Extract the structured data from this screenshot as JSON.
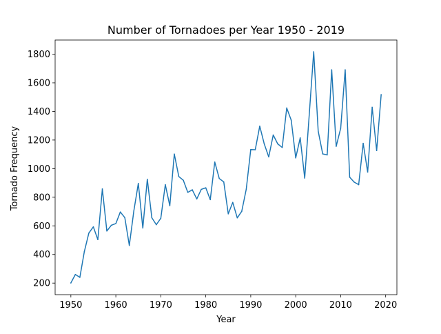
{
  "chart_data": {
    "type": "line",
    "title": "Number of Tornadoes per Year 1950 - 2019",
    "xlabel": "Year",
    "ylabel": "Tornado Frequency",
    "xlim": [
      1946.5,
      2022.5
    ],
    "ylim": [
      119,
      1899
    ],
    "xticks": [
      1950,
      1960,
      1970,
      1980,
      1990,
      2000,
      2010,
      2020
    ],
    "yticks": [
      200,
      400,
      600,
      800,
      1000,
      1200,
      1400,
      1600,
      1800
    ],
    "grid": false,
    "legend": "none",
    "line_color": "#1f77b4",
    "series": [
      {
        "x": [
          1950,
          1951,
          1952,
          1953,
          1954,
          1955,
          1956,
          1957,
          1958,
          1959,
          1960,
          1961,
          1962,
          1963,
          1964,
          1965,
          1966,
          1967,
          1968,
          1969,
          1970,
          1971,
          1972,
          1973,
          1974,
          1975,
          1976,
          1977,
          1978,
          1979,
          1980,
          1981,
          1982,
          1983,
          1984,
          1985,
          1986,
          1987,
          1988,
          1989,
          1990,
          1991,
          1992,
          1993,
          1994,
          1995,
          1996,
          1997,
          1998,
          1999,
          2000,
          2001,
          2002,
          2003,
          2004,
          2005,
          2006,
          2007,
          2008,
          2009,
          2010,
          2011,
          2012,
          2013,
          2014,
          2015,
          2016,
          2017,
          2018,
          2019
        ],
        "values": [
          201,
          260,
          240,
          421,
          550,
          593,
          504,
          858,
          564,
          604,
          616,
          697,
          657,
          463,
          704,
          897,
          585,
          926,
          657,
          608,
          653,
          888,
          741,
          1102,
          945,
          919,
          834,
          852,
          788,
          855,
          866,
          783,
          1046,
          931,
          907,
          684,
          764,
          656,
          702,
          856,
          1133,
          1132,
          1297,
          1173,
          1082,
          1235,
          1173,
          1148,
          1424,
          1339,
          1075,
          1215,
          934,
          1374,
          1817,
          1262,
          1103,
          1096,
          1691,
          1156,
          1282,
          1691,
          940,
          906,
          888,
          1177,
          976,
          1429,
          1126,
          1517
        ]
      }
    ]
  }
}
